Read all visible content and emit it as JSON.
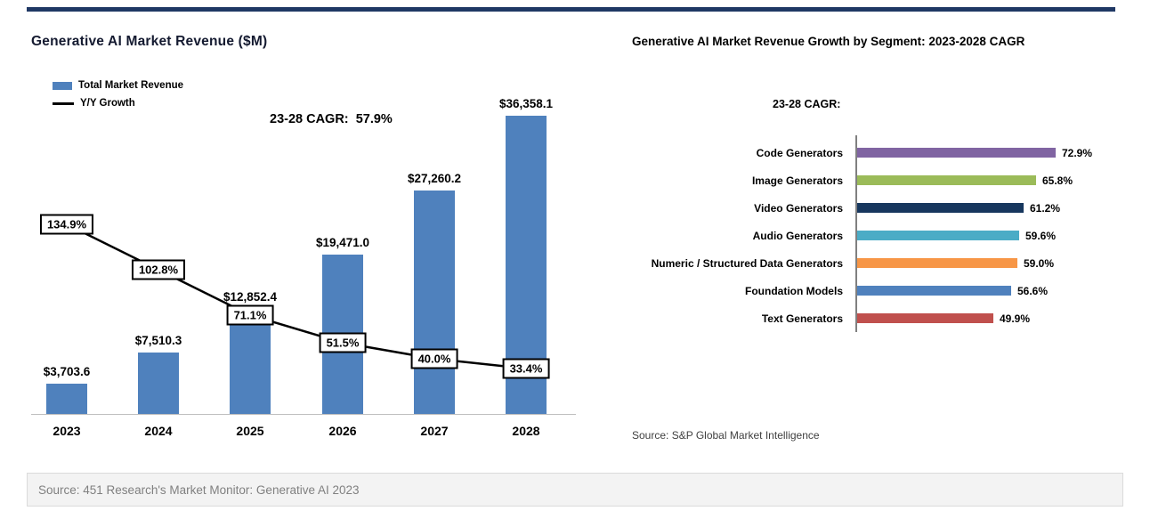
{
  "page": {
    "top_bar_color": "#1F3864",
    "footer_source": "Source: 451 Research's Market Monitor: Generative AI 2023"
  },
  "chart_data": [
    {
      "type": "bar",
      "title": "Generative AI Market Revenue ($M)",
      "annotation": "23-28 CAGR:  57.9%",
      "categories": [
        "2023",
        "2024",
        "2025",
        "2026",
        "2027",
        "2028"
      ],
      "series": [
        {
          "name": "Total Market Revenue",
          "type": "bar",
          "color": "#4F81BD",
          "values": [
            3703.6,
            7510.3,
            12852.4,
            19471.0,
            27260.2,
            36358.1
          ],
          "labels": [
            "$3,703.6",
            "$7,510.3",
            "$12,852.4",
            "$19,471.0",
            "$27,260.2",
            "$36,358.1"
          ]
        },
        {
          "name": "Y/Y Growth",
          "type": "line",
          "color": "#000000",
          "values": [
            134.9,
            102.8,
            71.1,
            51.5,
            40.0,
            33.4
          ],
          "labels": [
            "134.9%",
            "102.8%",
            "71.1%",
            "51.5%",
            "40.0%",
            "33.4%"
          ]
        }
      ],
      "xlabel": "",
      "ylabel": "Revenue ($M)",
      "grid": false,
      "legend_position": "top-left"
    },
    {
      "type": "bar",
      "orientation": "horizontal",
      "title": "Generative AI Market Revenue Growth by Segment: 2023-2028 CAGR",
      "subtitle": "23-28 CAGR:",
      "categories": [
        "Code Generators",
        "Image Generators",
        "Video Generators",
        "Audio Generators",
        "Numeric / Structured Data Generators",
        "Foundation Models",
        "Text Generators"
      ],
      "values": [
        72.9,
        65.8,
        61.2,
        59.6,
        59.0,
        56.6,
        49.9
      ],
      "labels": [
        "72.9%",
        "65.8%",
        "61.2%",
        "59.6%",
        "59.0%",
        "56.6%",
        "49.9%"
      ],
      "colors": [
        "#8064A2",
        "#9BBB59",
        "#17375E",
        "#4BACC6",
        "#F79646",
        "#4F81BD",
        "#C0504D"
      ],
      "source": "Source: S&P Global Market Intelligence",
      "xlim": [
        0,
        80
      ],
      "grid": false
    }
  ]
}
